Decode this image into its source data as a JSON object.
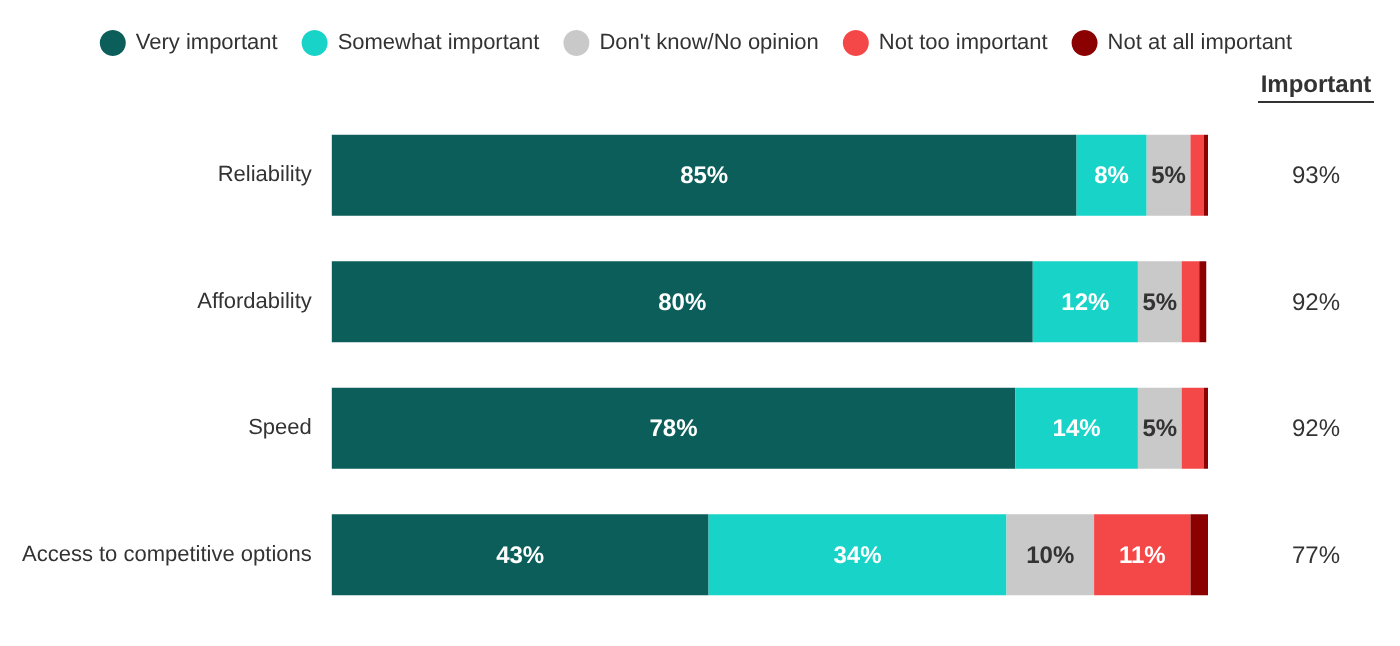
{
  "chart_data": {
    "type": "bar",
    "orientation": "horizontal",
    "stacked": true,
    "categories": [
      "Reliability",
      "Affordability",
      "Speed",
      "Access to competitive options"
    ],
    "series": [
      {
        "name": "Very important",
        "color": "#0b5e59",
        "values": [
          85,
          80,
          78,
          43
        ],
        "value_labels": [
          "85%",
          "80%",
          "78%",
          "43%"
        ]
      },
      {
        "name": "Somewhat important",
        "color": "#17d3c8",
        "values": [
          8,
          12,
          14,
          34
        ],
        "value_labels": [
          "8%",
          "12%",
          "14%",
          "34%"
        ]
      },
      {
        "name": "Don't know/No opinion",
        "color": "#c9c9c9",
        "values": [
          5,
          5,
          5,
          10
        ],
        "value_labels": [
          "5%",
          "5%",
          "5%",
          "10%"
        ]
      },
      {
        "name": "Not too important",
        "color": "#f44848",
        "values": [
          1.5,
          2,
          2.5,
          11
        ],
        "value_labels": [
          null,
          null,
          null,
          "11%"
        ]
      },
      {
        "name": "Not at all important",
        "color": "#8b0000",
        "values": [
          0.5,
          0.8,
          0.5,
          2
        ],
        "value_labels": [
          null,
          null,
          null,
          null
        ]
      }
    ],
    "annotations": [
      "Important",
      "93%",
      "92%",
      "92%",
      "77%"
    ],
    "xlim": [
      0,
      100
    ],
    "tick_labels": "y",
    "legend": "top"
  }
}
